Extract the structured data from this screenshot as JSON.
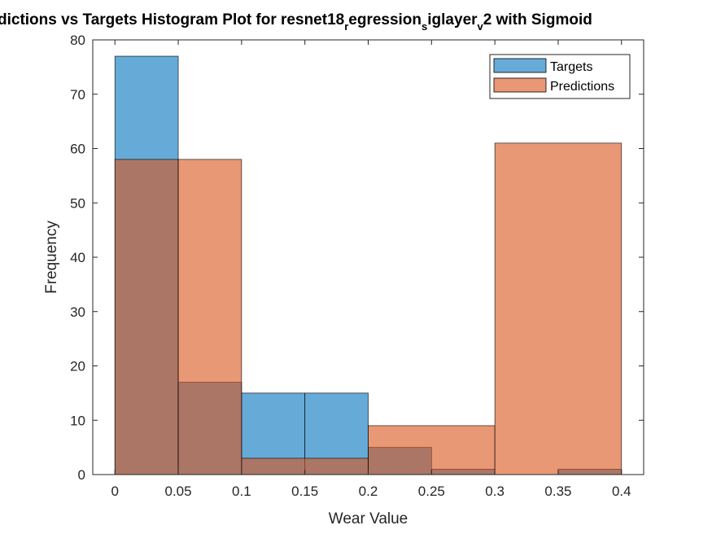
{
  "chart_data": {
    "type": "bar",
    "title": {
      "parts": [
        "dictions vs Targets Histogram Plot for resnet18",
        "r",
        "egression",
        "s",
        "iglayer",
        "v",
        "2 with Sigmoid"
      ],
      "subscripts": [
        false,
        true,
        false,
        true,
        false,
        true,
        false
      ]
    },
    "xlabel": "Wear Value",
    "ylabel": "Frequency",
    "xlim": [
      -0.0175,
      0.4175
    ],
    "ylim": [
      0,
      80
    ],
    "xticks": [
      "0",
      "0.05",
      "0.1",
      "0.15",
      "0.2",
      "0.25",
      "0.3",
      "0.35",
      "0.4"
    ],
    "xtick_values": [
      0,
      0.05,
      0.1,
      0.15,
      0.2,
      0.25,
      0.3,
      0.35,
      0.4
    ],
    "yticks": [
      "0",
      "10",
      "20",
      "30",
      "40",
      "50",
      "60",
      "70",
      "80"
    ],
    "ytick_values": [
      0,
      10,
      20,
      30,
      40,
      50,
      60,
      70,
      80
    ],
    "grid": false,
    "legend_position": "top-right",
    "series": [
      {
        "name": "Targets",
        "color": "#0072BD",
        "face_color": "#64A8D8",
        "bin_edges": [
          0,
          0.05,
          0.1,
          0.15,
          0.2,
          0.25,
          0.3,
          0.35,
          0.4
        ],
        "values": [
          77,
          17,
          15,
          15,
          5,
          1,
          0,
          1
        ]
      },
      {
        "name": "Predictions",
        "color": "#D95319",
        "face_color": "#E99A74",
        "bin_edges": [
          0,
          0.05,
          0.1,
          0.2,
          0.3,
          0.4
        ],
        "values": [
          58,
          58,
          3,
          9,
          61
        ]
      }
    ],
    "overlap_color": "#AD7B6B"
  }
}
